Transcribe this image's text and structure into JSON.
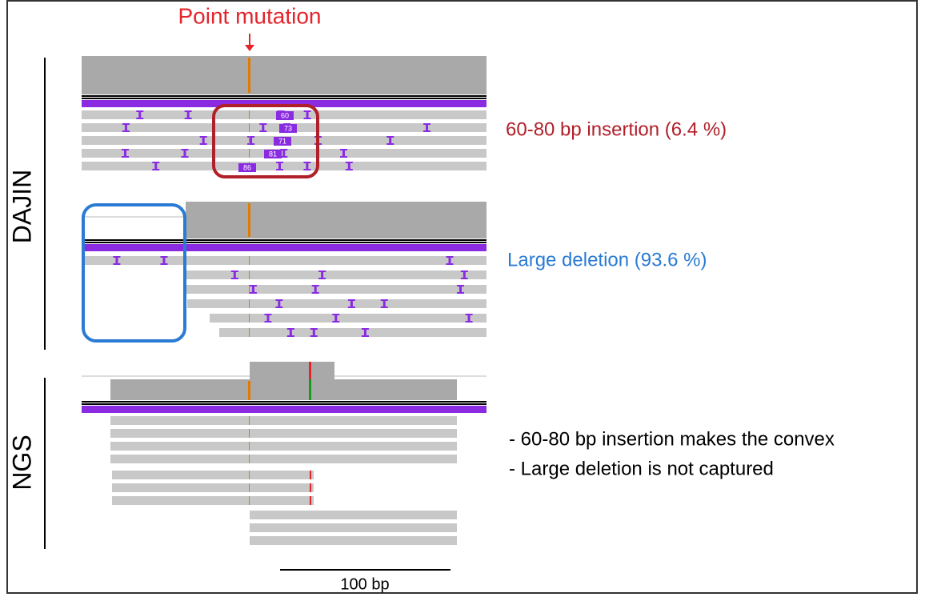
{
  "header": {
    "title": "Point mutation"
  },
  "sections": [
    {
      "label": "DAJIN",
      "annotations": [
        "60-80 bp insertion (6.4 %)",
        "Large deletion (93.6 %)"
      ],
      "insertion_labels": [
        "60",
        "73",
        "71",
        "81",
        "86"
      ]
    },
    {
      "label": "NGS",
      "notes": [
        "- 60-80 bp insertion makes the convex",
        "- Large deletion is not captured"
      ]
    }
  ],
  "scale_bar": "100 bp"
}
